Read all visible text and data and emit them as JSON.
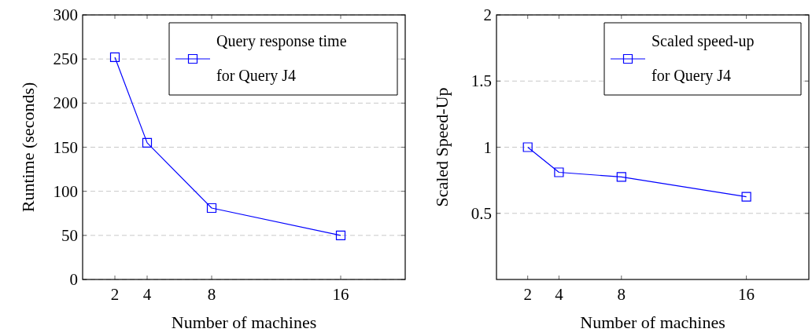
{
  "chart_data": [
    {
      "type": "line",
      "xlabel": "Number of machines",
      "ylabel": "Runtime (seconds)",
      "x": [
        2,
        4,
        8,
        16
      ],
      "xlim": [
        0,
        20
      ],
      "xticks": [
        2,
        4,
        8,
        16
      ],
      "ylim": [
        0,
        300
      ],
      "yticks": [
        0,
        50,
        100,
        150,
        200,
        250,
        300
      ],
      "grid": "y",
      "legend": "top right",
      "marker": "square",
      "line_style": "solid",
      "series": [
        {
          "name": "Query response time for Query J4",
          "color": "#0000ff",
          "values": [
            252,
            155,
            81,
            50
          ]
        }
      ]
    },
    {
      "type": "line",
      "xlabel": "Number of machines",
      "ylabel": "Scaled Speed-Up",
      "x": [
        2,
        4,
        8,
        16
      ],
      "xlim": [
        0,
        20
      ],
      "xticks": [
        2,
        4,
        8,
        16
      ],
      "ylim": [
        0,
        2
      ],
      "yticks": [
        0.5,
        1,
        1.5,
        2
      ],
      "grid": "y",
      "legend": "top right",
      "marker": "square",
      "line_style": "solid",
      "series": [
        {
          "name": "Scaled speed-up for Query J4",
          "color": "#0000ff",
          "values": [
            1.0,
            0.81,
            0.775,
            0.625
          ]
        }
      ]
    }
  ]
}
